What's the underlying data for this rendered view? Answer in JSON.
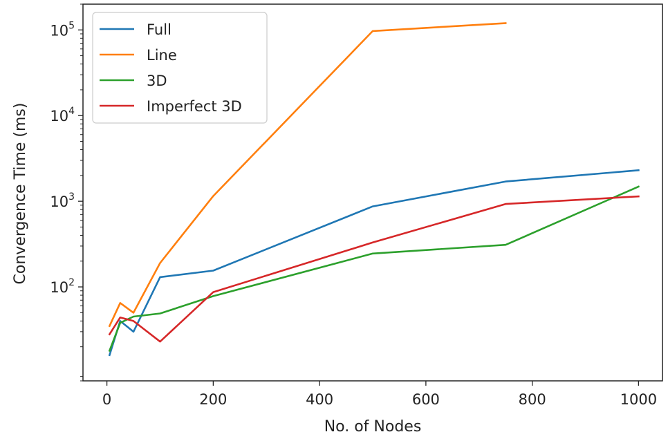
{
  "chart_data": {
    "type": "line",
    "xlabel": "No. of Nodes",
    "ylabel": "Convergence Time (ms)",
    "xlim": [
      -45,
      1045
    ],
    "ylim": [
      8,
      200000
    ],
    "yscale": "log",
    "grid": false,
    "legend_position": "top-left",
    "x_ticks": [
      0,
      200,
      400,
      600,
      800,
      1000
    ],
    "y_ticks": [
      {
        "value": 100,
        "base": "10",
        "exp": "2"
      },
      {
        "value": 1000,
        "base": "10",
        "exp": "3"
      },
      {
        "value": 10000,
        "base": "10",
        "exp": "4"
      },
      {
        "value": 100000,
        "base": "10",
        "exp": "5"
      }
    ],
    "series": [
      {
        "name": "Full",
        "color": "#1f77b4",
        "x": [
          5,
          25,
          50,
          100,
          200,
          500,
          750,
          1000
        ],
        "y": [
          16,
          40,
          30,
          130,
          155,
          870,
          1700,
          2300
        ]
      },
      {
        "name": "Line",
        "color": "#ff7f0e",
        "x": [
          5,
          25,
          50,
          100,
          200,
          500,
          750
        ],
        "y": [
          35,
          65,
          50,
          190,
          1150,
          97000,
          120000
        ]
      },
      {
        "name": "3D",
        "color": "#2ca02c",
        "x": [
          5,
          25,
          50,
          100,
          200,
          500,
          750,
          1000
        ],
        "y": [
          18,
          38,
          45,
          49,
          78,
          245,
          310,
          1480
        ]
      },
      {
        "name": "Imperfect 3D",
        "color": "#d62728",
        "x": [
          5,
          25,
          50,
          100,
          200,
          500,
          750,
          1000
        ],
        "y": [
          28,
          44,
          40,
          23,
          87,
          330,
          930,
          1140
        ]
      }
    ]
  }
}
